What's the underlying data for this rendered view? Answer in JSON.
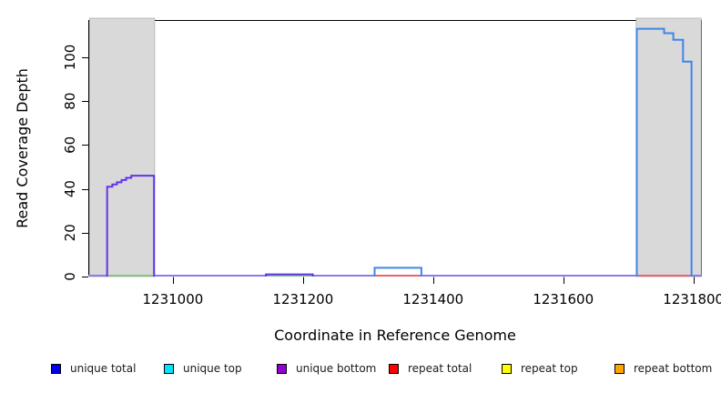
{
  "chart_data": {
    "type": "line",
    "title": "",
    "xlabel": "Coordinate in Reference Genome",
    "ylabel": "Read Coverage Depth",
    "xlim": [
      1230870,
      1231813
    ],
    "ylim": [
      0,
      117
    ],
    "x_ticks": [
      1231000,
      1231200,
      1231400,
      1231600,
      1231800
    ],
    "x_tick_labels": [
      "1231000",
      "1231200",
      "1231400",
      "1231600",
      "1231800"
    ],
    "y_ticks": [
      0,
      20,
      40,
      60,
      80,
      100
    ],
    "y_tick_labels": [
      "0",
      "20",
      "40",
      "60",
      "80",
      "100"
    ],
    "grid": false,
    "plot_border_color": "#000000",
    "flank_shading": {
      "color": "#d9d9d9",
      "edge_color": "#ababab",
      "regions": [
        {
          "name": "left-flank",
          "x0": 1230872,
          "x1": 1230972
        },
        {
          "name": "right-flank",
          "x0": 1231712,
          "x1": 1231812
        }
      ]
    },
    "series": [
      {
        "name": "left-peak",
        "color": "#6233ec",
        "points": [
          [
            1230899,
            0
          ],
          [
            1230899,
            41
          ],
          [
            1230907,
            41
          ],
          [
            1230907,
            42
          ],
          [
            1230914,
            42
          ],
          [
            1230914,
            43
          ],
          [
            1230921,
            43
          ],
          [
            1230921,
            44
          ],
          [
            1230928,
            44
          ],
          [
            1230928,
            45
          ],
          [
            1230936,
            45
          ],
          [
            1230936,
            46
          ],
          [
            1230971,
            46
          ],
          [
            1230971,
            0
          ]
        ]
      },
      {
        "name": "bump-1",
        "color": "#6233ec",
        "points": [
          [
            1231143,
            0
          ],
          [
            1231143,
            1
          ],
          [
            1231215,
            1
          ],
          [
            1231215,
            0
          ]
        ]
      },
      {
        "name": "bump-2",
        "color": "#3e86e8",
        "points": [
          [
            1231310,
            0
          ],
          [
            1231310,
            4
          ],
          [
            1231382,
            4
          ],
          [
            1231382,
            0
          ]
        ]
      },
      {
        "name": "right-peak",
        "color": "#3e86e8",
        "points": [
          [
            1231713,
            0
          ],
          [
            1231713,
            113
          ],
          [
            1231755,
            113
          ],
          [
            1231755,
            111
          ],
          [
            1231769,
            111
          ],
          [
            1231769,
            108
          ],
          [
            1231784,
            108
          ],
          [
            1231784,
            98
          ],
          [
            1231797,
            98
          ],
          [
            1231797,
            0
          ]
        ]
      }
    ],
    "baseline_segments": [
      {
        "x0": 1230870,
        "x1": 1230899,
        "color": "#897af0"
      },
      {
        "x0": 1230899,
        "x1": 1230972,
        "color": "#82c882"
      },
      {
        "x0": 1230972,
        "x1": 1231143,
        "color": "#897af0"
      },
      {
        "x0": 1231143,
        "x1": 1231215,
        "color": "#82c882"
      },
      {
        "x0": 1231215,
        "x1": 1231310,
        "color": "#897af0"
      },
      {
        "x0": 1231310,
        "x1": 1231382,
        "color": "#ef6170"
      },
      {
        "x0": 1231382,
        "x1": 1231713,
        "color": "#897af0"
      },
      {
        "x0": 1231713,
        "x1": 1231797,
        "color": "#ef6170"
      },
      {
        "x0": 1231797,
        "x1": 1231813,
        "color": "#897af0"
      }
    ]
  },
  "legend": {
    "items": [
      {
        "label": "unique total",
        "color": "#0000ee"
      },
      {
        "label": "unique top",
        "color": "#00e5ff"
      },
      {
        "label": "unique bottom",
        "color": "#9400d3"
      },
      {
        "label": "repeat total",
        "color": "#ff0000"
      },
      {
        "label": "repeat top",
        "color": "#ffff00"
      },
      {
        "label": "repeat bottom",
        "color": "#ffa500"
      }
    ]
  }
}
